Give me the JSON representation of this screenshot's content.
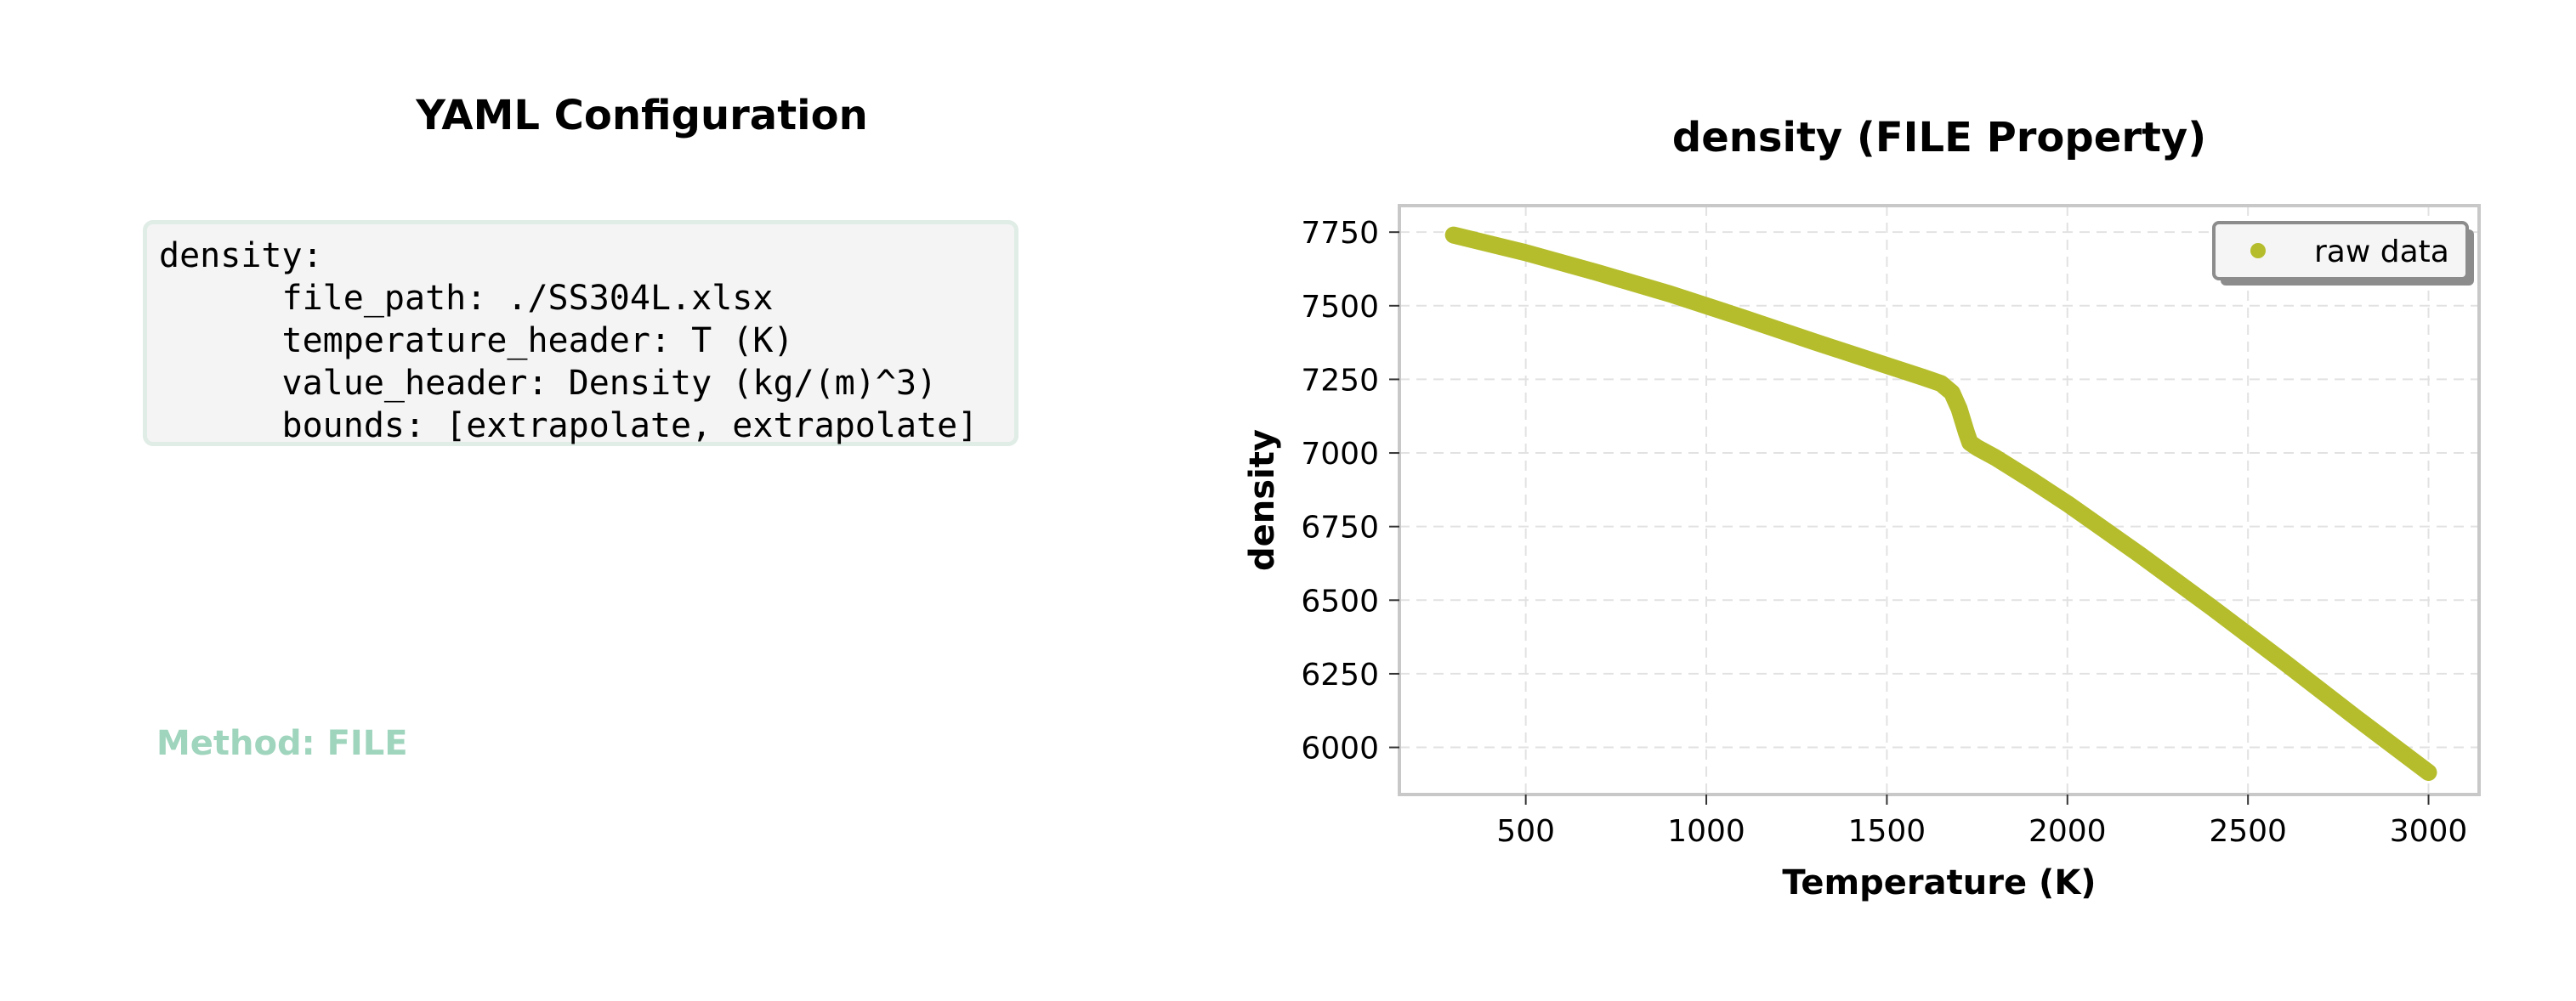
{
  "left_panel": {
    "title": "YAML Configuration",
    "yaml_lines": [
      "density:",
      "      file_path: ./SS304L.xlsx",
      "      temperature_header: T (K)",
      "      value_header: Density (kg/(m)^3)",
      "      bounds: [extrapolate, extrapolate]"
    ],
    "method_label": "Method: FILE",
    "method_color": "#9fd4bd"
  },
  "chart_data": {
    "type": "line",
    "title": "density (FILE Property)",
    "xlabel": "Temperature (K)",
    "ylabel": "density",
    "xlim": [
      150,
      3140
    ],
    "ylim": [
      5840,
      7840
    ],
    "xticks": [
      500,
      1000,
      1500,
      2000,
      2500,
      3000
    ],
    "yticks": [
      6000,
      6250,
      6500,
      6750,
      7000,
      7250,
      7500,
      7750
    ],
    "grid": true,
    "legend_position": "top-right",
    "series": [
      {
        "name": "raw data",
        "color": "#b5bd2c",
        "x": [
          300,
          500,
          700,
          900,
          1100,
          1300,
          1500,
          1600,
          1650,
          1680,
          1700,
          1720,
          1730,
          1750,
          1800,
          1900,
          2000,
          2200,
          2400,
          2600,
          2800,
          3000
        ],
        "y": [
          7740,
          7680,
          7612,
          7540,
          7460,
          7377,
          7297,
          7257,
          7236,
          7205,
          7150,
          7070,
          7035,
          7018,
          6985,
          6908,
          6828,
          6655,
          6475,
          6290,
          6100,
          5915
        ]
      }
    ]
  }
}
